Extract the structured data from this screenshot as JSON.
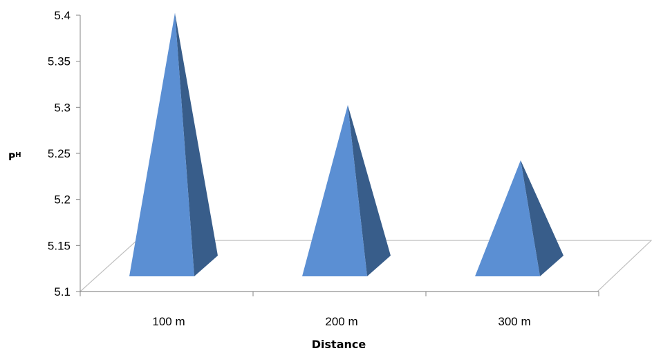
{
  "chart_data": {
    "type": "bar",
    "bar_shape": "pyramid",
    "categories": [
      "100 m",
      "200 m",
      "300 m"
    ],
    "values": [
      5.38,
      5.28,
      5.22
    ],
    "xlabel": "Distance",
    "ylabel": "P",
    "ylabel_sup": "H",
    "ylim": [
      5.1,
      5.4
    ],
    "yticks": [
      "5.1",
      "5.15",
      "5.2",
      "5.25",
      "5.3",
      "5.35",
      "5.4"
    ],
    "grid": false,
    "legend": "none",
    "colors": {
      "front_face": "#5b8fd3",
      "side_face": "#385d8a",
      "floor_line": "#bfbfbf",
      "axis_line": "#868686"
    }
  }
}
